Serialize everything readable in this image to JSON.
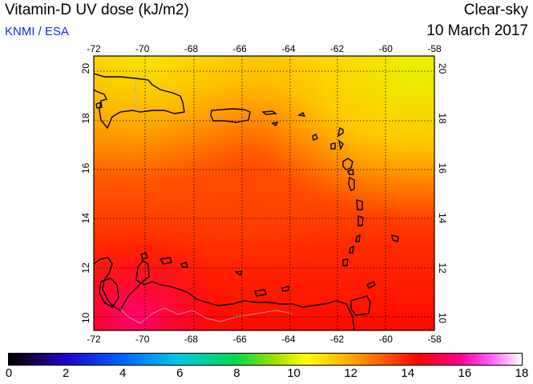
{
  "header": {
    "title": "Vitamin-D UV dose (kJ/m2)",
    "subtitle": "KNMI / ESA",
    "mode": "Clear-sky",
    "date": "10 March 2017"
  },
  "map": {
    "lon_range": [
      -72,
      -58
    ],
    "lat_range": [
      9.5,
      20.5
    ],
    "lon_ticks": [
      "-72",
      "-70",
      "-68",
      "-66",
      "-64",
      "-62",
      "-60",
      "-58"
    ],
    "lat_ticks": [
      "20",
      "18",
      "16",
      "14",
      "12",
      "10"
    ],
    "colors": {
      "low_field": "#ff3000",
      "mid_field": "#ff9a00",
      "high_field": "#f0f000",
      "peak": "#ff0060",
      "coast": "#000000",
      "grid": "#000000"
    }
  },
  "colorbar": {
    "tick_labels": [
      "0",
      "2",
      "4",
      "6",
      "8",
      "10",
      "12",
      "14",
      "16",
      "18"
    ],
    "range": [
      0,
      18
    ]
  }
}
